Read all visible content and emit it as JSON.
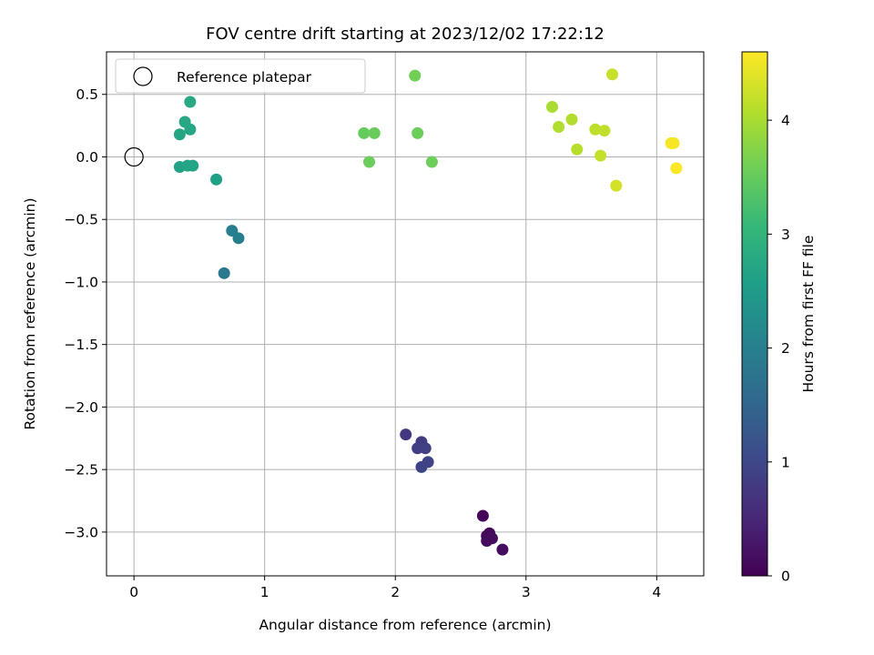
{
  "chart_data": {
    "type": "scatter",
    "title": "FOV centre drift starting at 2023/12/02 17:22:12",
    "xlabel": "Angular distance from reference (arcmin)",
    "ylabel": "Rotation from reference (arcmin)",
    "xlim": [
      -0.21,
      4.36
    ],
    "ylim": [
      -3.35,
      0.84
    ],
    "x_ticks": [
      0,
      1,
      2,
      3,
      4
    ],
    "x_tick_labels": [
      "0",
      "1",
      "2",
      "3",
      "4"
    ],
    "y_ticks": [
      0.5,
      0.0,
      -0.5,
      -1.0,
      -1.5,
      -2.0,
      -2.5,
      -3.0
    ],
    "y_tick_labels": [
      "0.5",
      "0.0",
      "−0.5",
      "−1.0",
      "−1.5",
      "−2.0",
      "−2.5",
      "−3.0"
    ],
    "grid": true,
    "legend": {
      "placement": "top-left",
      "entries": [
        "Reference platepar"
      ]
    },
    "reference_point": {
      "x": 0,
      "y": 0
    },
    "colorbar": {
      "label": "Hours from first FF file",
      "colormap": "viridis",
      "range": [
        0,
        4.6
      ],
      "ticks": [
        0,
        1,
        2,
        3,
        4
      ],
      "tick_labels": [
        "0",
        "1",
        "2",
        "3",
        "4"
      ]
    },
    "points": [
      {
        "x": 2.67,
        "y": -2.87,
        "hours": 0.05
      },
      {
        "x": 2.7,
        "y": -3.03,
        "hours": 0.08
      },
      {
        "x": 2.72,
        "y": -3.01,
        "hours": 0.1
      },
      {
        "x": 2.7,
        "y": -3.07,
        "hours": 0.12
      },
      {
        "x": 2.74,
        "y": -3.05,
        "hours": 0.14
      },
      {
        "x": 2.82,
        "y": -3.14,
        "hours": 0.16
      },
      {
        "x": 2.08,
        "y": -2.22,
        "hours": 0.75
      },
      {
        "x": 2.2,
        "y": -2.28,
        "hours": 0.8
      },
      {
        "x": 2.17,
        "y": -2.33,
        "hours": 0.85
      },
      {
        "x": 2.23,
        "y": -2.33,
        "hours": 0.88
      },
      {
        "x": 2.25,
        "y": -2.44,
        "hours": 0.92
      },
      {
        "x": 2.2,
        "y": -2.48,
        "hours": 0.95
      },
      {
        "x": 0.69,
        "y": -0.93,
        "hours": 1.85
      },
      {
        "x": 0.75,
        "y": -0.59,
        "hours": 1.95
      },
      {
        "x": 0.8,
        "y": -0.65,
        "hours": 1.98
      },
      {
        "x": 0.63,
        "y": -0.18,
        "hours": 2.6
      },
      {
        "x": 0.35,
        "y": -0.08,
        "hours": 2.65
      },
      {
        "x": 0.41,
        "y": -0.07,
        "hours": 2.67
      },
      {
        "x": 0.45,
        "y": -0.07,
        "hours": 2.69
      },
      {
        "x": 0.35,
        "y": 0.18,
        "hours": 2.7
      },
      {
        "x": 0.43,
        "y": 0.22,
        "hours": 2.72
      },
      {
        "x": 0.39,
        "y": 0.28,
        "hours": 2.74
      },
      {
        "x": 0.43,
        "y": 0.44,
        "hours": 2.76
      },
      {
        "x": 1.76,
        "y": 0.19,
        "hours": 3.5
      },
      {
        "x": 1.84,
        "y": 0.19,
        "hours": 3.52
      },
      {
        "x": 1.8,
        "y": -0.04,
        "hours": 3.55
      },
      {
        "x": 2.17,
        "y": 0.19,
        "hours": 3.55
      },
      {
        "x": 2.28,
        "y": -0.04,
        "hours": 3.57
      },
      {
        "x": 2.15,
        "y": 0.65,
        "hours": 3.6
      },
      {
        "x": 3.2,
        "y": 0.4,
        "hours": 4.0
      },
      {
        "x": 3.25,
        "y": 0.24,
        "hours": 4.05
      },
      {
        "x": 3.35,
        "y": 0.3,
        "hours": 4.07
      },
      {
        "x": 3.39,
        "y": 0.06,
        "hours": 4.1
      },
      {
        "x": 3.53,
        "y": 0.22,
        "hours": 4.15
      },
      {
        "x": 3.6,
        "y": 0.21,
        "hours": 4.17
      },
      {
        "x": 3.57,
        "y": 0.01,
        "hours": 4.2
      },
      {
        "x": 3.66,
        "y": 0.66,
        "hours": 4.22
      },
      {
        "x": 3.69,
        "y": -0.23,
        "hours": 4.3
      },
      {
        "x": 4.11,
        "y": 0.11,
        "hours": 4.55
      },
      {
        "x": 4.13,
        "y": 0.11,
        "hours": 4.56
      },
      {
        "x": 4.15,
        "y": -0.09,
        "hours": 4.58
      }
    ]
  }
}
